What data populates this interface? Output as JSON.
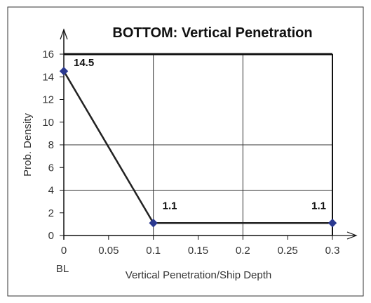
{
  "chart_data": {
    "type": "line",
    "title": "BOTTOM: Vertical Penetration",
    "xlabel": "Vertical Penetration/Ship Depth",
    "ylabel": "Prob. Density",
    "x_origin_label": "BL",
    "xlim": [
      0,
      0.3
    ],
    "ylim": [
      0,
      16
    ],
    "xticks": [
      0,
      0.05,
      0.1,
      0.15,
      0.2,
      0.25,
      0.3
    ],
    "xtick_labels": [
      "0",
      "0.05",
      "0.1",
      "0.15",
      "0.2",
      "0.25",
      "0.3"
    ],
    "yticks": [
      0,
      2,
      4,
      6,
      8,
      10,
      12,
      14,
      16
    ],
    "ytick_labels": [
      "0",
      "2",
      "4",
      "6",
      "8",
      "10",
      "12",
      "14",
      "16"
    ],
    "grid": true,
    "legend": "none",
    "series": [
      {
        "x": [
          0,
          0.1,
          0.3
        ],
        "y": [
          14.5,
          1.1,
          1.1
        ],
        "point_labels": [
          "14.5",
          "1.1",
          "1.1"
        ],
        "line_color": "#222222",
        "marker_color": "#2b3990",
        "marker": "diamond"
      }
    ]
  }
}
